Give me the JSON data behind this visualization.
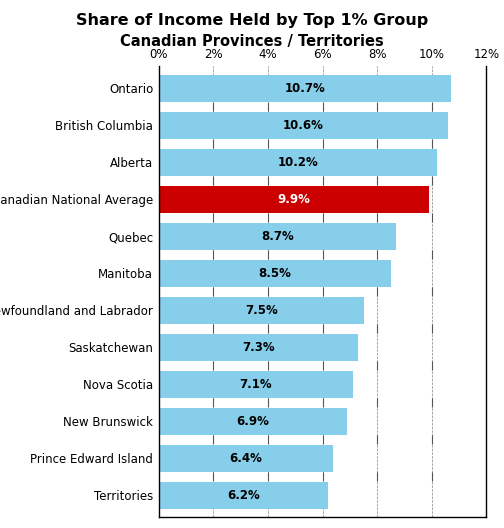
{
  "title_line1": "Share of Income Held by Top 1% Group",
  "title_line2": "Canadian Provinces / Territories",
  "categories": [
    "Ontario",
    "British Columbia",
    "Alberta",
    "Canadian National Average",
    "Quebec",
    "Manitoba",
    "Newfoundland and Labrador",
    "Saskatchewan",
    "Nova Scotia",
    "New Brunswick",
    "Prince Edward Island",
    "Territories"
  ],
  "values": [
    10.7,
    10.6,
    10.2,
    9.9,
    8.7,
    8.5,
    7.5,
    7.3,
    7.1,
    6.9,
    6.4,
    6.2
  ],
  "bar_colors": [
    "#87CEEB",
    "#87CEEB",
    "#87CEEB",
    "#CC0000",
    "#87CEEB",
    "#87CEEB",
    "#87CEEB",
    "#87CEEB",
    "#87CEEB",
    "#87CEEB",
    "#87CEEB",
    "#87CEEB"
  ],
  "label_colors": [
    "#000000",
    "#000000",
    "#000000",
    "#FFFFFF",
    "#000000",
    "#000000",
    "#000000",
    "#000000",
    "#000000",
    "#000000",
    "#000000",
    "#000000"
  ],
  "xlim": [
    0,
    12
  ],
  "xtick_values": [
    0,
    2,
    4,
    6,
    8,
    10,
    12
  ],
  "xtick_labels": [
    "0%",
    "2%",
    "4%",
    "6%",
    "8%",
    "10%",
    "12%"
  ],
  "bar_height": 0.72,
  "figsize": [
    5.04,
    5.28
  ],
  "dpi": 100,
  "title_fontsize": 11.5,
  "subtitle_fontsize": 10.5,
  "ytick_fontsize": 8.5,
  "xtick_fontsize": 8.5,
  "label_fontsize": 8.5
}
